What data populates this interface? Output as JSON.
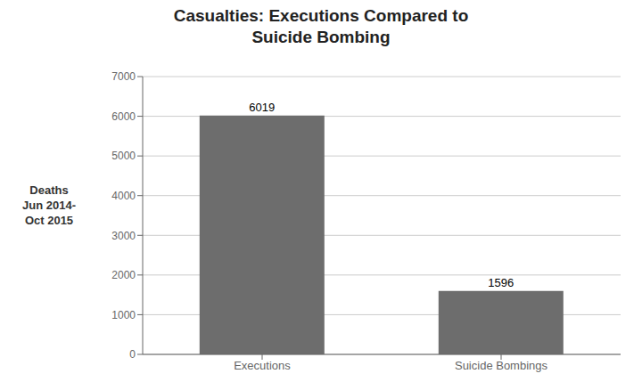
{
  "chart_data": {
    "type": "bar",
    "title": "Casualties: Executions Compared to\nSuicide Bombing",
    "ylabel": "Deaths\nJun 2014-\nOct 2015",
    "categories": [
      "Executions",
      "Suicide Bombings"
    ],
    "values": [
      6019,
      1596
    ],
    "color": "#6d6d6d",
    "ylim": [
      0,
      7000
    ],
    "yticks": [
      0,
      1000,
      2000,
      3000,
      4000,
      5000,
      6000,
      7000
    ],
    "grid": true,
    "data_labels": true
  }
}
